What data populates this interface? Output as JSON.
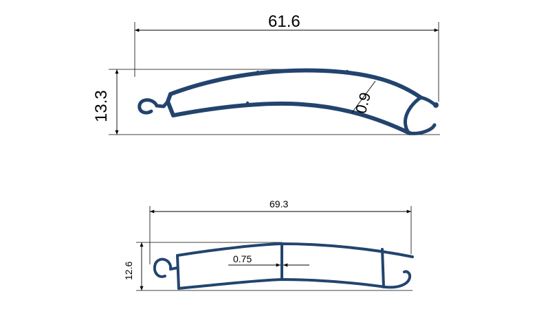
{
  "profiles": [
    {
      "id": "upper",
      "dimensions": {
        "width": "61.6",
        "height": "13.3",
        "wall": "0.9"
      }
    },
    {
      "id": "lower",
      "dimensions": {
        "width": "69.3",
        "height": "12.6",
        "wall": "0.75"
      }
    }
  ],
  "colors": {
    "profile": "#22446e",
    "dimension_line": "#000000",
    "background": "#ffffff"
  }
}
